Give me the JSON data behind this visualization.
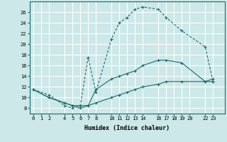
{
  "xlabel": "Humidex (Indice chaleur)",
  "bg_color": "#cce8e8",
  "line_color": "#1a6b6b",
  "grid_color": "#ffffff",
  "xticks": [
    0,
    1,
    2,
    4,
    5,
    6,
    7,
    8,
    10,
    11,
    12,
    13,
    14,
    16,
    17,
    18,
    19,
    20,
    22,
    23
  ],
  "yticks": [
    8,
    10,
    12,
    14,
    16,
    18,
    20,
    22,
    24,
    26
  ],
  "ylim": [
    7.0,
    28.0
  ],
  "xlim": [
    -0.5,
    24.5
  ],
  "line1_x": [
    0,
    2,
    4,
    5,
    6,
    7,
    8,
    10,
    11,
    12,
    13,
    14,
    16,
    17,
    19,
    22,
    23
  ],
  "line1_y": [
    11.5,
    10.5,
    8.5,
    8.0,
    8.5,
    17.5,
    11.0,
    21.0,
    24.0,
    25.0,
    26.5,
    27.0,
    26.5,
    25.0,
    22.5,
    19.5,
    13.0
  ],
  "line2_x": [
    0,
    2,
    4,
    5,
    6,
    7,
    8,
    10,
    11,
    12,
    13,
    14,
    16,
    17,
    19,
    22,
    23
  ],
  "line2_y": [
    11.5,
    10.0,
    9.0,
    8.5,
    8.5,
    8.5,
    11.5,
    13.5,
    14.0,
    14.5,
    15.0,
    16.0,
    17.0,
    17.0,
    16.5,
    13.0,
    13.5
  ],
  "line3_x": [
    0,
    2,
    4,
    5,
    6,
    7,
    8,
    10,
    11,
    12,
    13,
    14,
    16,
    17,
    19,
    22,
    23
  ],
  "line3_y": [
    11.5,
    10.0,
    9.0,
    8.5,
    8.0,
    8.5,
    9.0,
    10.0,
    10.5,
    11.0,
    11.5,
    12.0,
    12.5,
    13.0,
    13.0,
    13.0,
    13.0
  ]
}
